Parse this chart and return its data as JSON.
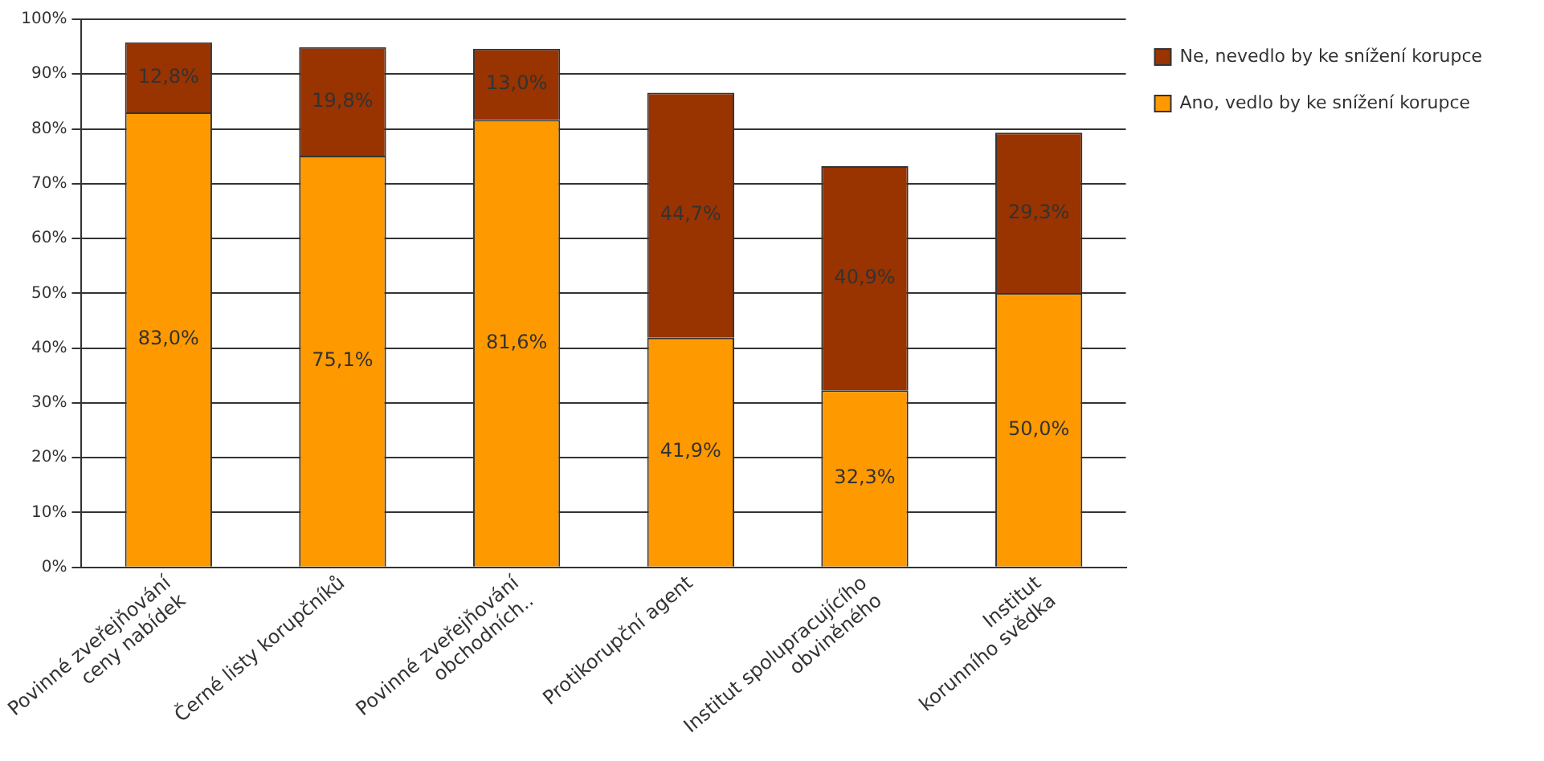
{
  "chart_data": {
    "type": "bar",
    "stacked": true,
    "categories": [
      "Povinné zveřejňování ceny nabídek",
      "Černé listy korupčníků",
      "Povinné zveřejňování obchodních..",
      "Protikorupční agent",
      "Institut spolupracujícího obviněného",
      "Institut korunního svědka"
    ],
    "series": [
      {
        "name": "Ano, vedlo by ke snížení korupce",
        "color": "#ff9900",
        "values": [
          83.0,
          75.1,
          81.6,
          41.9,
          32.3,
          50.0
        ],
        "value_labels": [
          "83,0%",
          "75,1%",
          "81,6%",
          "41,9%",
          "32,3%",
          "50,0%"
        ]
      },
      {
        "name": "Ne, nevedlo by ke snížení korupce",
        "color": "#993300",
        "values": [
          12.8,
          19.8,
          13.0,
          44.7,
          40.9,
          29.3
        ],
        "value_labels": [
          "12,8%",
          "19,8%",
          "13,0%",
          "44,7%",
          "40,9%",
          "29,3%"
        ]
      }
    ],
    "ylim": [
      0,
      100
    ],
    "yticks": [
      {
        "value": 0,
        "label": "0%"
      },
      {
        "value": 10,
        "label": "10%"
      },
      {
        "value": 20,
        "label": "20%"
      },
      {
        "value": 30,
        "label": "30%"
      },
      {
        "value": 40,
        "label": "40%"
      },
      {
        "value": 50,
        "label": "50%"
      },
      {
        "value": 60,
        "label": "60%"
      },
      {
        "value": 70,
        "label": "70%"
      },
      {
        "value": 80,
        "label": "80%"
      },
      {
        "value": 90,
        "label": "90%"
      },
      {
        "value": 100,
        "label": "100%"
      }
    ],
    "grid": "y",
    "legend": "top right"
  }
}
